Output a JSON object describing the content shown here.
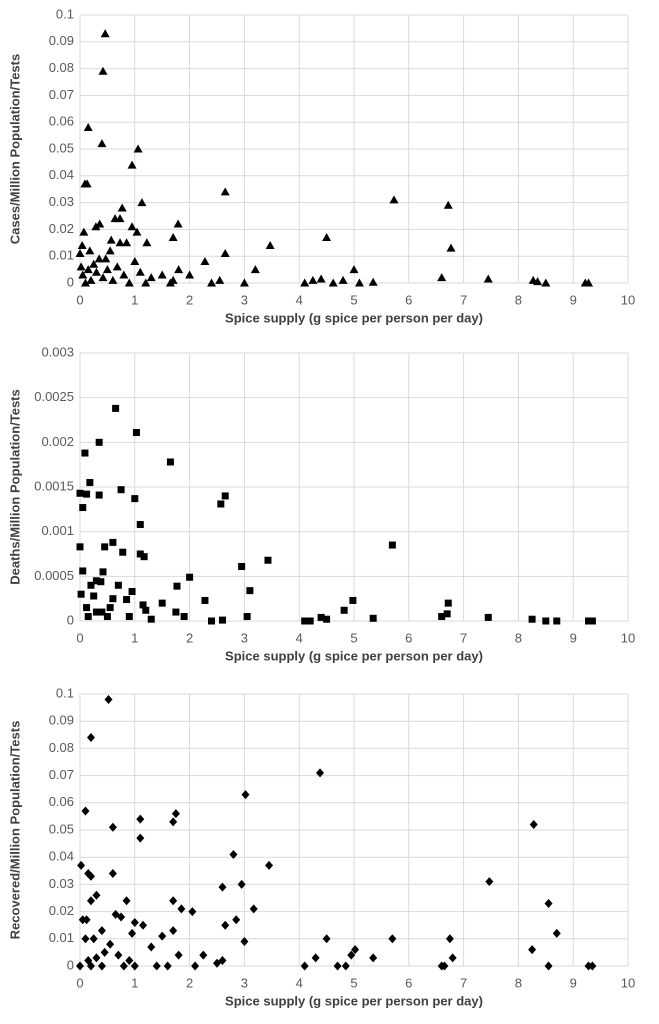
{
  "chart_data": [
    {
      "type": "scatter",
      "marker": "triangle",
      "color": "#000000",
      "grid": true,
      "xlabel": "Spice supply (g spice per person per day)",
      "ylabel": "Cases/Million Population/Tests",
      "xlim": [
        0,
        10
      ],
      "xticks": [
        0,
        1,
        2,
        3,
        4,
        5,
        6,
        7,
        8,
        9,
        10
      ],
      "ylim": [
        0,
        0.1
      ],
      "yticks": [
        0,
        0.01,
        0.02,
        0.03,
        0.04,
        0.05,
        0.06,
        0.07,
        0.08,
        0.09,
        0.1
      ],
      "x": [
        0.46,
        0.42,
        0.15,
        0.4,
        1.06,
        0.95,
        0.09,
        0.13,
        2.65,
        5.73,
        6.72,
        1.13,
        0.77,
        0.64,
        0.73,
        1.79,
        0.29,
        0.36,
        0.95,
        1.04,
        0.07,
        1.7,
        4.5,
        3.47,
        6.77,
        0.04,
        0.57,
        0.73,
        1.22,
        0.18,
        2.65,
        2.28,
        0.47,
        5.0,
        3.2,
        6.6,
        7.45,
        8.27,
        8.35,
        8.5,
        9.22,
        9.28,
        4.1,
        4.25,
        4.4,
        4.8,
        4.62,
        5.35,
        5.1,
        0.0,
        0.02,
        0.05,
        0.1,
        0.2,
        0.25,
        0.3,
        0.35,
        0.42,
        0.5,
        0.55,
        0.6,
        0.68,
        0.8,
        0.85,
        0.9,
        1.0,
        1.1,
        1.2,
        1.3,
        1.5,
        1.7,
        1.8,
        2.0,
        2.4,
        2.55,
        3.0,
        1.65,
        0.15
      ],
      "values": [
        0.093,
        0.079,
        0.058,
        0.052,
        0.05,
        0.044,
        0.037,
        0.037,
        0.034,
        0.031,
        0.029,
        0.03,
        0.028,
        0.024,
        0.024,
        0.022,
        0.021,
        0.022,
        0.021,
        0.019,
        0.019,
        0.017,
        0.017,
        0.014,
        0.013,
        0.014,
        0.016,
        0.015,
        0.015,
        0.012,
        0.011,
        0.008,
        0.009,
        0.005,
        0.005,
        0.002,
        0.0015,
        0.001,
        0.0005,
        0,
        0,
        0,
        0,
        0.001,
        0.0015,
        0.001,
        0,
        0.0003,
        0,
        0.011,
        0.006,
        0.003,
        0,
        0.001,
        0.007,
        0.004,
        0.009,
        0.002,
        0.005,
        0.012,
        0.001,
        0.006,
        0.003,
        0.015,
        0,
        0.008,
        0.004,
        0,
        0.002,
        0.003,
        0.001,
        0.005,
        0.003,
        0,
        0.001,
        0,
        0,
        0.005
      ]
    },
    {
      "type": "scatter",
      "marker": "square",
      "color": "#000000",
      "grid": true,
      "xlabel": "Spice supply (g spice per person per day)",
      "ylabel": "Deaths/Million Population/Tests",
      "xlim": [
        0,
        10
      ],
      "xticks": [
        0,
        1,
        2,
        3,
        4,
        5,
        6,
        7,
        8,
        9,
        10
      ],
      "ylim": [
        0,
        0.003
      ],
      "yticks": [
        0,
        0.0005,
        0.001,
        0.0015,
        0.002,
        0.0025,
        0.003
      ],
      "x": [
        0.65,
        1.03,
        0.35,
        0.09,
        1.65,
        0.18,
        0.75,
        0.0,
        0.12,
        0.35,
        1.0,
        2.65,
        2.57,
        0.05,
        1.1,
        0.45,
        0.6,
        0.0,
        5.7,
        0.78,
        1.1,
        1.17,
        3.43,
        2.95,
        0.05,
        0.42,
        2.0,
        0.3,
        0.38,
        0.2,
        0.7,
        1.77,
        0.02,
        0.25,
        0.95,
        3.1,
        0.6,
        0.85,
        2.28,
        4.98,
        1.5,
        1.15,
        0.12,
        6.72,
        4.82,
        1.75,
        0.4,
        6.6,
        6.7,
        7.45,
        4.4,
        4.5,
        5.35,
        8.25,
        8.5,
        8.7,
        9.28,
        9.35,
        4.1,
        4.2,
        3.05,
        2.6,
        2.4,
        1.9,
        1.3,
        0.5,
        0.15,
        0.3,
        0.55,
        0.9,
        1.2
      ],
      "values": [
        0.00238,
        0.00211,
        0.002,
        0.00188,
        0.00178,
        0.00155,
        0.00147,
        0.00143,
        0.00142,
        0.00141,
        0.00137,
        0.0014,
        0.00131,
        0.00127,
        0.00108,
        0.00083,
        0.00088,
        0.00083,
        0.00085,
        0.00077,
        0.00075,
        0.00072,
        0.00068,
        0.00061,
        0.00056,
        0.00055,
        0.00049,
        0.00045,
        0.00044,
        0.0004,
        0.0004,
        0.00039,
        0.0003,
        0.00028,
        0.00033,
        0.00034,
        0.00025,
        0.00024,
        0.00023,
        0.00023,
        0.0002,
        0.00018,
        0.00015,
        0.0002,
        0.00012,
        0.0001,
        0.0001,
        5e-05,
        8e-05,
        4e-05,
        4e-05,
        2e-05,
        3e-05,
        2e-05,
        0,
        0,
        0,
        0,
        0,
        0,
        5e-05,
        1e-05,
        0,
        5e-05,
        2e-05,
        5e-05,
        5e-05,
        0.0001,
        0.00015,
        5e-05,
        0.00012
      ]
    },
    {
      "type": "scatter",
      "marker": "diamond",
      "color": "#000000",
      "grid": true,
      "xlabel": "Spice supply (g spice per person per day)",
      "ylabel": "Recovered/Million Population/Tests",
      "xlim": [
        0,
        10
      ],
      "xticks": [
        0,
        1,
        2,
        3,
        4,
        5,
        6,
        7,
        8,
        9,
        10
      ],
      "ylim": [
        0,
        0.1
      ],
      "yticks": [
        0,
        0.01,
        0.02,
        0.03,
        0.04,
        0.05,
        0.06,
        0.07,
        0.08,
        0.09,
        0.1
      ],
      "x": [
        0.52,
        0.2,
        4.38,
        3.02,
        0.1,
        1.75,
        1.7,
        1.1,
        8.28,
        0.6,
        1.1,
        2.8,
        3.45,
        0.02,
        0.6,
        0.2,
        0.15,
        7.47,
        2.95,
        2.6,
        0.3,
        8.55,
        1.7,
        0.85,
        0.2,
        1.85,
        2.05,
        3.17,
        0.65,
        0.75,
        0.05,
        0.12,
        2.85,
        1.0,
        1.15,
        2.65,
        0.4,
        1.7,
        8.7,
        0.95,
        1.5,
        4.5,
        5.7,
        6.75,
        3.0,
        0.25,
        0.1,
        0.55,
        1.3,
        5.02,
        8.25,
        4.95,
        1.8,
        2.25,
        5.35,
        4.3,
        6.8,
        0.3,
        0.7,
        0.45,
        4.1,
        4.7,
        4.85,
        6.6,
        6.65,
        8.55,
        9.28,
        9.35,
        2.5,
        2.1,
        0.0,
        0.2,
        0.4,
        0.8,
        1.0,
        1.4,
        1.6,
        0.9,
        0.15,
        2.6
      ],
      "values": [
        0.098,
        0.084,
        0.071,
        0.063,
        0.057,
        0.056,
        0.053,
        0.054,
        0.052,
        0.051,
        0.047,
        0.041,
        0.037,
        0.037,
        0.034,
        0.033,
        0.034,
        0.031,
        0.03,
        0.029,
        0.026,
        0.023,
        0.024,
        0.024,
        0.024,
        0.021,
        0.02,
        0.021,
        0.019,
        0.018,
        0.017,
        0.017,
        0.017,
        0.016,
        0.015,
        0.015,
        0.013,
        0.013,
        0.012,
        0.012,
        0.011,
        0.01,
        0.01,
        0.01,
        0.009,
        0.01,
        0.01,
        0.008,
        0.007,
        0.006,
        0.006,
        0.004,
        0.004,
        0.004,
        0.003,
        0.003,
        0.003,
        0.003,
        0.004,
        0.005,
        0,
        0,
        0,
        0,
        0,
        0,
        0,
        0,
        0.001,
        0,
        0,
        0,
        0,
        0,
        0,
        0,
        0,
        0.002,
        0.002,
        0.002
      ]
    }
  ]
}
